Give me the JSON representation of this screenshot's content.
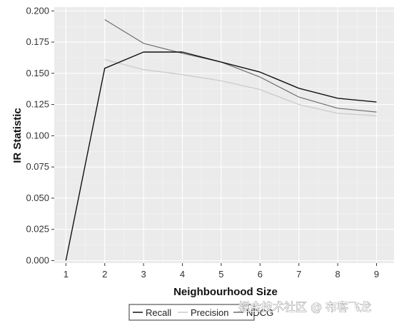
{
  "chart_data": {
    "type": "line",
    "xlabel": "Neighbourhood Size",
    "ylabel": "IR Statistic",
    "x": [
      1,
      2,
      3,
      4,
      5,
      6,
      7,
      8,
      9
    ],
    "xlim": [
      0.7,
      9.45
    ],
    "ylim": [
      -0.002,
      0.203
    ],
    "xticks": [
      "1",
      "2",
      "3",
      "4",
      "5",
      "6",
      "7",
      "8",
      "9"
    ],
    "yticks": [
      "0.000",
      "0.025",
      "0.050",
      "0.075",
      "0.100",
      "0.125",
      "0.150",
      "0.175",
      "0.200"
    ],
    "grid": true,
    "legend_position": "bottom",
    "series": [
      {
        "name": "Recall",
        "color": "#111111",
        "values": [
          0.0,
          0.154,
          0.167,
          0.167,
          0.159,
          0.151,
          0.138,
          0.13,
          0.127
        ]
      },
      {
        "name": "Precision",
        "color": "#c8c8c8",
        "values": [
          null,
          0.161,
          0.153,
          0.149,
          0.144,
          0.137,
          0.125,
          0.118,
          0.116
        ]
      },
      {
        "name": "NDCG",
        "color": "#6e6e6e",
        "values": [
          null,
          0.193,
          0.174,
          0.166,
          0.159,
          0.147,
          0.131,
          0.122,
          0.119
        ]
      }
    ]
  },
  "watermark": "掘金技术社区 @ 布客飞龙"
}
